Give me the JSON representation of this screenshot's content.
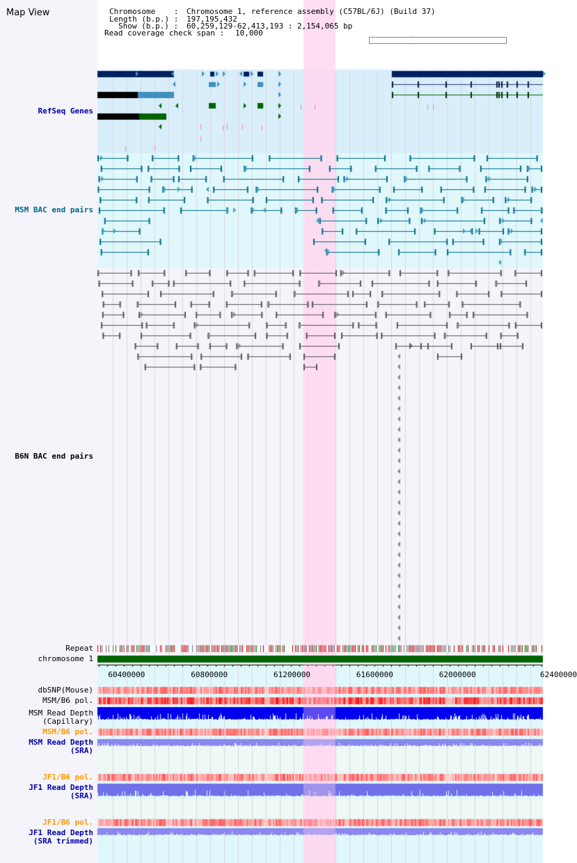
{
  "window": {
    "title": "Map View"
  },
  "header": {
    "chromosome_label": "Chromosome    :",
    "chromosome_value": "Chromosome 1, reference assembly (C57BL/6J) (Build 37)",
    "length_label": "Length (b.p.) :",
    "length_value": "197,195,432",
    "show_label": "Show (b.p.) :",
    "show_value": "60,259,129-62,413,193 : 2,154,065 bp",
    "coverage_label": "Read coverage check span :",
    "coverage_value": "10,000"
  },
  "tracks": {
    "refseq": {
      "label": "RefSeq Genes",
      "color": "#0000aa"
    },
    "msm_bac": {
      "label": "MSM BAC end pairs",
      "color": "#006688"
    },
    "b6n_bac": {
      "label": "B6N BAC end pairs",
      "color": "#000000"
    },
    "repeat": {
      "label": "Repeat",
      "color": "#000000"
    },
    "chrom": {
      "label": "chromosome 1",
      "color": "#000000",
      "bar_color": "#006400"
    },
    "dbsnp": {
      "label": "dbSNP(Mouse)",
      "color": "#000000"
    },
    "msm_b6_pol_cap": {
      "label": "MSM/B6 pol.",
      "color": "#000000"
    },
    "msm_depth_cap": {
      "label_line1": "MSM Read Depth",
      "label_line2": "(Capillary)",
      "color": "#000000"
    },
    "msm_b6_pol_sra": {
      "label": "MSM/B6 pol.",
      "color": "#ff9900"
    },
    "msm_depth_sra": {
      "label_line1": "MSM Read Depth",
      "label_line2": "(SRA)",
      "color": "#0000aa"
    },
    "jf1_b6_pol": {
      "label": "JF1/B6 pol.",
      "color": "#ff9900"
    },
    "jf1_depth_sra": {
      "label_line1": "JF1 Read Depth",
      "label_line2": "(SRA)",
      "color": "#0000aa"
    },
    "jf1_b6_pol_trim": {
      "label": "JF1/B6 pol.",
      "color": "#ff9900"
    },
    "jf1_depth_trim": {
      "label_line1": "JF1 Read Depth",
      "label_line2": "(SRA trimmed)",
      "color": "#0000aa"
    }
  },
  "axis": {
    "start": 60259129,
    "end": 62413193,
    "ticks": [
      {
        "value": 60400000,
        "label": "60400000"
      },
      {
        "value": 60800000,
        "label": "60800000"
      },
      {
        "value": 61200000,
        "label": "61200000"
      },
      {
        "value": 61600000,
        "label": "61600000"
      },
      {
        "value": 62000000,
        "label": "62000000"
      },
      {
        "value": 62400000,
        "label": "62400000"
      }
    ]
  },
  "highlight": {
    "start": 61255000,
    "end": 61410000,
    "color": "#ffd8f0"
  },
  "colors": {
    "refseq_bg": "#d8eefa",
    "msm_bg": "#e0f8fc",
    "lower_bg": "#e0f8fc",
    "sra_bg": "#eef8f4",
    "gene_dark": "#002060",
    "gene_mid": "#4090c0",
    "gene_green": "#006400",
    "msm_pair": "#006888",
    "b6n_pair": "#555555",
    "depth_blue": "#0000ee",
    "depth_light": "#8888ee"
  }
}
